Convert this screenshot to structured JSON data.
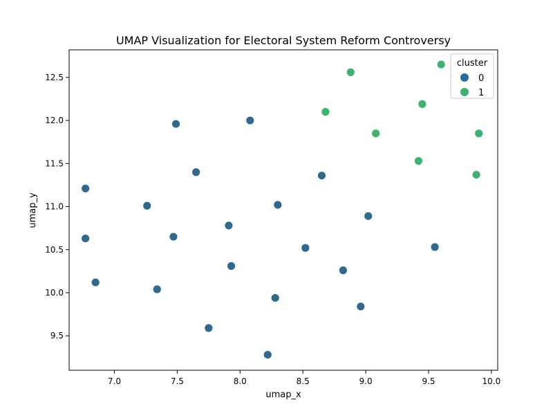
{
  "chart_data": {
    "type": "scatter",
    "title": "UMAP Visualization for Electoral System Reform Controversy",
    "xlabel": "umap_x",
    "ylabel": "umap_y",
    "xlim": [
      6.64,
      10.05
    ],
    "ylim": [
      9.1,
      12.82
    ],
    "xticks": [
      7.0,
      7.5,
      8.0,
      8.5,
      9.0,
      9.5,
      10.0
    ],
    "xtick_labels": [
      "7.0",
      "7.5",
      "8.0",
      "8.5",
      "9.0",
      "9.5",
      "10.0"
    ],
    "yticks": [
      9.5,
      10.0,
      10.5,
      11.0,
      11.5,
      12.0,
      12.5
    ],
    "ytick_labels": [
      "9.5",
      "10.0",
      "10.5",
      "11.0",
      "11.5",
      "12.0",
      "12.5"
    ],
    "grid": false,
    "legend": {
      "title": "cluster",
      "placement": "top-right"
    },
    "series": [
      {
        "name": "0",
        "color": "#2f6a8e",
        "points": [
          [
            6.77,
            11.21
          ],
          [
            6.77,
            10.63
          ],
          [
            6.85,
            10.12
          ],
          [
            7.26,
            11.01
          ],
          [
            7.34,
            10.04
          ],
          [
            7.47,
            10.65
          ],
          [
            7.49,
            11.96
          ],
          [
            7.65,
            11.4
          ],
          [
            7.75,
            9.59
          ],
          [
            7.91,
            10.78
          ],
          [
            7.93,
            10.31
          ],
          [
            8.08,
            12.0
          ],
          [
            8.22,
            9.28
          ],
          [
            8.28,
            9.94
          ],
          [
            8.3,
            11.02
          ],
          [
            8.52,
            10.52
          ],
          [
            8.65,
            11.36
          ],
          [
            8.82,
            10.26
          ],
          [
            8.96,
            9.84
          ],
          [
            9.02,
            10.89
          ],
          [
            9.55,
            10.53
          ]
        ]
      },
      {
        "name": "1",
        "color": "#3cb371",
        "points": [
          [
            8.68,
            12.1
          ],
          [
            8.88,
            12.56
          ],
          [
            9.08,
            11.85
          ],
          [
            9.42,
            11.53
          ],
          [
            9.45,
            12.19
          ],
          [
            9.6,
            12.65
          ],
          [
            9.88,
            11.37
          ],
          [
            9.9,
            11.85
          ]
        ]
      }
    ]
  }
}
